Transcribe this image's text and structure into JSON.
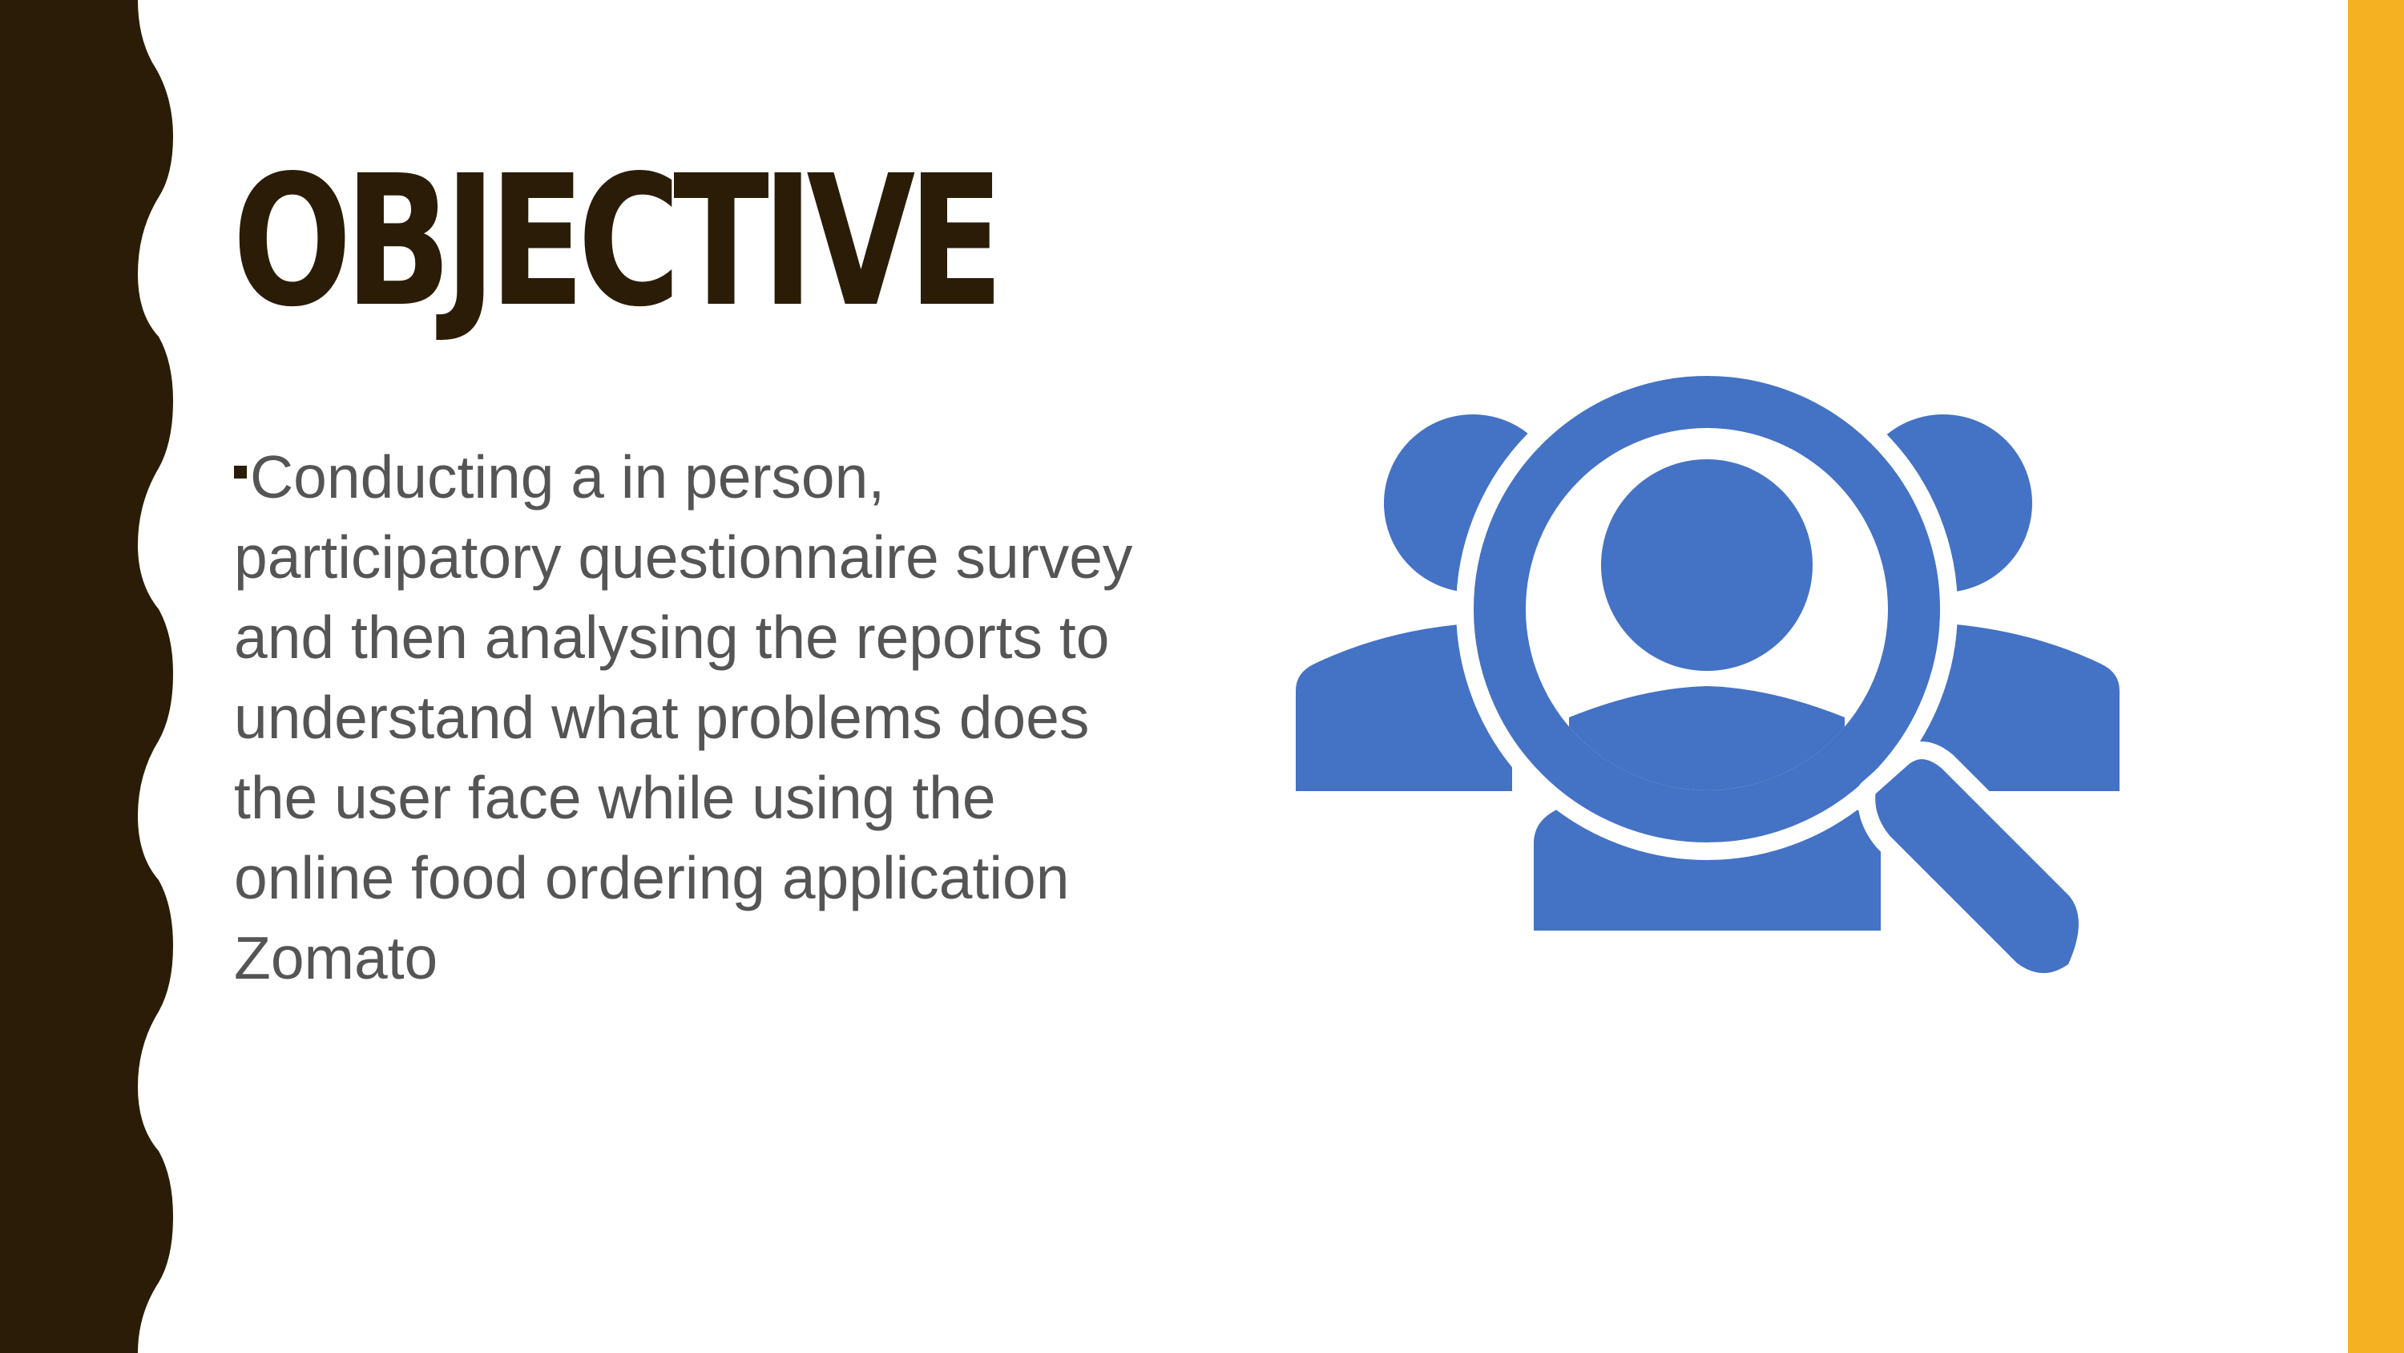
{
  "slide": {
    "title": "OBJECTIVE",
    "body_text": "Conducting a in person, participatory questionnaire survey and then analysing the reports to understand what problems does the user face while using the online food ordering application Zomato"
  },
  "icons": {
    "bullet": "square-bullet",
    "illustration": "user-search-magnifier-icon"
  },
  "colors": {
    "background": "#ffffff",
    "left_band": "#2a1c07",
    "right_band": "#f5b122",
    "title": "#2a1c07",
    "body_text": "#555555",
    "bullet": "#2a1c07",
    "icon": "#4472c4"
  }
}
